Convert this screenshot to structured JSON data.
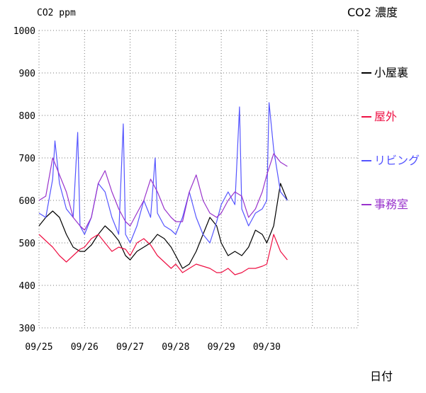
{
  "chart_data": {
    "type": "line",
    "title": "CO2 濃度",
    "ylabel": "CO2 ppm",
    "xlabel": "日付",
    "ylim": [
      300,
      1000
    ],
    "yticks": [
      "300",
      "400",
      "500",
      "600",
      "700",
      "800",
      "900",
      "1000"
    ],
    "xticks": [
      "09/25",
      "09/26",
      "09/27",
      "09/28",
      "09/29",
      "09/30"
    ],
    "xlim_days": [
      0,
      7
    ],
    "grid": true,
    "legend_position": "right",
    "series": [
      {
        "name": "小屋裏",
        "color": "#000000",
        "x": [
          0.0,
          0.15,
          0.3,
          0.45,
          0.6,
          0.75,
          0.9,
          1.0,
          1.15,
          1.3,
          1.45,
          1.6,
          1.75,
          1.9,
          2.0,
          2.15,
          2.3,
          2.45,
          2.6,
          2.75,
          2.9,
          3.0,
          3.15,
          3.3,
          3.45,
          3.6,
          3.75,
          3.9,
          4.0,
          4.15,
          4.3,
          4.45,
          4.6,
          4.75,
          4.9,
          5.0,
          5.15,
          5.3,
          5.45
        ],
        "y": [
          540,
          560,
          575,
          560,
          520,
          490,
          480,
          480,
          495,
          520,
          540,
          525,
          505,
          470,
          460,
          480,
          490,
          500,
          520,
          510,
          490,
          470,
          440,
          450,
          480,
          520,
          560,
          540,
          500,
          470,
          480,
          470,
          490,
          530,
          520,
          500,
          540,
          640,
          600
        ]
      },
      {
        "name": "屋外",
        "color": "#ee1144",
        "x": [
          0.0,
          0.15,
          0.3,
          0.45,
          0.6,
          0.75,
          0.9,
          1.0,
          1.15,
          1.3,
          1.45,
          1.6,
          1.75,
          1.9,
          2.0,
          2.15,
          2.3,
          2.45,
          2.6,
          2.75,
          2.9,
          3.0,
          3.15,
          3.3,
          3.45,
          3.6,
          3.75,
          3.9,
          4.0,
          4.15,
          4.3,
          4.45,
          4.6,
          4.75,
          4.9,
          5.0,
          5.15,
          5.3,
          5.45
        ],
        "y": [
          520,
          505,
          490,
          470,
          455,
          470,
          485,
          490,
          510,
          520,
          500,
          480,
          490,
          485,
          470,
          500,
          510,
          495,
          470,
          455,
          440,
          450,
          430,
          440,
          450,
          445,
          440,
          430,
          430,
          440,
          425,
          430,
          440,
          440,
          445,
          450,
          520,
          480,
          460
        ]
      },
      {
        "name": "リビング",
        "color": "#5555ff",
        "x": [
          0.0,
          0.15,
          0.3,
          0.35,
          0.45,
          0.6,
          0.75,
          0.85,
          0.9,
          1.0,
          1.15,
          1.3,
          1.45,
          1.6,
          1.75,
          1.85,
          1.9,
          2.0,
          2.15,
          2.3,
          2.45,
          2.55,
          2.6,
          2.75,
          2.9,
          3.0,
          3.15,
          3.3,
          3.45,
          3.6,
          3.75,
          3.9,
          4.0,
          4.15,
          4.3,
          4.4,
          4.45,
          4.6,
          4.75,
          4.9,
          5.0,
          5.05,
          5.15,
          5.3,
          5.45
        ],
        "y": [
          570,
          560,
          650,
          740,
          640,
          580,
          560,
          760,
          540,
          520,
          560,
          640,
          620,
          560,
          520,
          780,
          520,
          500,
          540,
          600,
          560,
          700,
          570,
          540,
          530,
          520,
          560,
          620,
          560,
          520,
          500,
          550,
          590,
          620,
          590,
          820,
          580,
          540,
          570,
          580,
          600,
          830,
          720,
          620,
          600
        ]
      },
      {
        "name": "事務室",
        "color": "#9933cc",
        "x": [
          0.0,
          0.15,
          0.3,
          0.45,
          0.6,
          0.75,
          0.9,
          1.0,
          1.15,
          1.3,
          1.45,
          1.6,
          1.75,
          1.9,
          2.0,
          2.15,
          2.3,
          2.45,
          2.6,
          2.75,
          2.9,
          3.0,
          3.15,
          3.3,
          3.45,
          3.6,
          3.75,
          3.9,
          4.0,
          4.15,
          4.3,
          4.45,
          4.6,
          4.75,
          4.9,
          5.0,
          5.15,
          5.3,
          5.45
        ],
        "y": [
          600,
          610,
          700,
          660,
          620,
          560,
          540,
          530,
          560,
          640,
          670,
          620,
          580,
          550,
          540,
          570,
          600,
          650,
          620,
          580,
          560,
          550,
          550,
          620,
          660,
          600,
          570,
          560,
          570,
          600,
          620,
          610,
          560,
          580,
          620,
          660,
          710,
          690,
          680
        ]
      }
    ]
  }
}
